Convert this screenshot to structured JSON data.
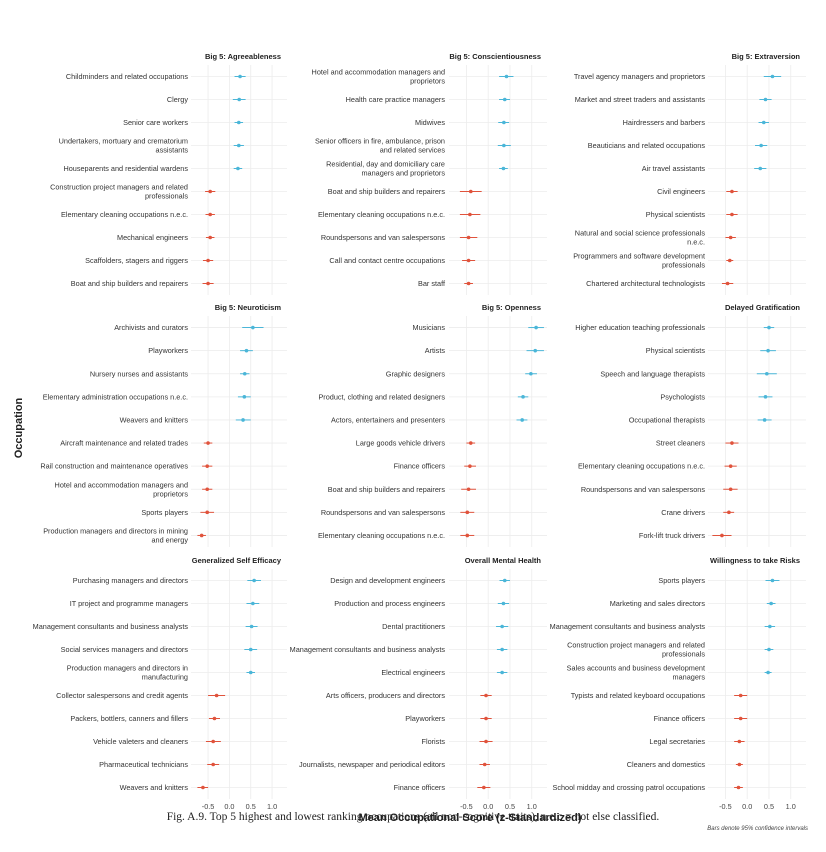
{
  "figure": {
    "y_axis_title": "Occupation",
    "x_axis_title": "Mean Occupational Score (z-Standardized)",
    "note": "Bars denote 95% confidence intervals",
    "caption_label": "Fig. A.9.",
    "caption_text": "Top 5 highest and lowest ranking occupations (all non-cognitive traits), n.e.c = not else classified.",
    "colors": {
      "high": "#4bb6d8",
      "low": "#e0533c",
      "grid": "#ececec",
      "panel_title": "#222222"
    },
    "x_ticks": [
      "-0.5",
      "0.0",
      "0.5",
      "1.0"
    ]
  },
  "chart_data": [
    {
      "type": "dot-errorbar",
      "title": "Big 5: Agreeableness",
      "xlim": [
        -0.9,
        1.35
      ],
      "points": [
        {
          "label": "Childminders and related occupations",
          "value": 0.25,
          "lo": 0.12,
          "hi": 0.38,
          "group": "high"
        },
        {
          "label": "Clergy",
          "value": 0.23,
          "lo": 0.08,
          "hi": 0.38,
          "group": "high"
        },
        {
          "label": "Senior care workers",
          "value": 0.22,
          "lo": 0.12,
          "hi": 0.32,
          "group": "high"
        },
        {
          "label": "Undertakers, mortuary and crematorium assistants",
          "value": 0.22,
          "lo": 0.1,
          "hi": 0.34,
          "group": "high"
        },
        {
          "label": "Houseparents and residential wardens",
          "value": 0.2,
          "lo": 0.1,
          "hi": 0.3,
          "group": "high"
        },
        {
          "label": "Construction project managers and related professionals",
          "value": -0.45,
          "lo": -0.57,
          "hi": -0.33,
          "group": "low"
        },
        {
          "label": "Elementary cleaning occupations n.e.c.",
          "value": -0.45,
          "lo": -0.56,
          "hi": -0.34,
          "group": "low"
        },
        {
          "label": "Mechanical engineers",
          "value": -0.45,
          "lo": -0.55,
          "hi": -0.35,
          "group": "low"
        },
        {
          "label": "Scaffolders, stagers and riggers",
          "value": -0.5,
          "lo": -0.62,
          "hi": -0.38,
          "group": "low"
        },
        {
          "label": "Boat and ship builders and repairers",
          "value": -0.5,
          "lo": -0.63,
          "hi": -0.37,
          "group": "low"
        }
      ]
    },
    {
      "type": "dot-errorbar",
      "title": "Big 5: Conscientiousness",
      "xlim": [
        -0.9,
        1.35
      ],
      "points": [
        {
          "label": "Hotel and accommodation managers and proprietors",
          "value": 0.42,
          "lo": 0.25,
          "hi": 0.58,
          "group": "high"
        },
        {
          "label": "Health care practice managers",
          "value": 0.38,
          "lo": 0.25,
          "hi": 0.5,
          "group": "high"
        },
        {
          "label": "Midwives",
          "value": 0.36,
          "lo": 0.23,
          "hi": 0.48,
          "group": "high"
        },
        {
          "label": "Senior officers in fire, ambulance, prison and related services",
          "value": 0.36,
          "lo": 0.22,
          "hi": 0.52,
          "group": "high"
        },
        {
          "label": "Residential, day and domiciliary care managers and proprietors",
          "value": 0.35,
          "lo": 0.25,
          "hi": 0.45,
          "group": "high"
        },
        {
          "label": "Boat and ship builders and repairers",
          "value": -0.4,
          "lo": -0.65,
          "hi": -0.15,
          "group": "low"
        },
        {
          "label": "Elementary cleaning occupations n.e.c.",
          "value": -0.42,
          "lo": -0.65,
          "hi": -0.18,
          "group": "low"
        },
        {
          "label": "Roundspersons and van salespersons",
          "value": -0.45,
          "lo": -0.65,
          "hi": -0.25,
          "group": "low"
        },
        {
          "label": "Call and contact centre occupations",
          "value": -0.45,
          "lo": -0.6,
          "hi": -0.3,
          "group": "low"
        },
        {
          "label": "Bar staff",
          "value": -0.45,
          "lo": -0.55,
          "hi": -0.35,
          "group": "low"
        }
      ]
    },
    {
      "type": "dot-errorbar",
      "title": "Big 5: Extraversion",
      "xlim": [
        -0.9,
        1.35
      ],
      "points": [
        {
          "label": "Travel agency managers and proprietors",
          "value": 0.58,
          "lo": 0.38,
          "hi": 0.78,
          "group": "high"
        },
        {
          "label": "Market and street traders and assistants",
          "value": 0.42,
          "lo": 0.28,
          "hi": 0.56,
          "group": "high"
        },
        {
          "label": "Hairdressers and barbers",
          "value": 0.38,
          "lo": 0.26,
          "hi": 0.5,
          "group": "high"
        },
        {
          "label": "Beauticians and related occupations",
          "value": 0.32,
          "lo": 0.18,
          "hi": 0.46,
          "group": "high"
        },
        {
          "label": "Air travel assistants",
          "value": 0.3,
          "lo": 0.16,
          "hi": 0.44,
          "group": "high"
        },
        {
          "label": "Civil engineers",
          "value": -0.35,
          "lo": -0.48,
          "hi": -0.22,
          "group": "low"
        },
        {
          "label": "Physical scientists",
          "value": -0.35,
          "lo": -0.48,
          "hi": -0.22,
          "group": "low"
        },
        {
          "label": "Natural and social science professionals n.e.c.",
          "value": -0.38,
          "lo": -0.5,
          "hi": -0.26,
          "group": "low"
        },
        {
          "label": "Programmers and software development professionals",
          "value": -0.4,
          "lo": -0.48,
          "hi": -0.32,
          "group": "low"
        },
        {
          "label": "Chartered architectural technologists",
          "value": -0.45,
          "lo": -0.58,
          "hi": -0.32,
          "group": "low"
        }
      ]
    },
    {
      "type": "dot-errorbar",
      "title": "Big 5: Neuroticism",
      "xlim": [
        -0.9,
        1.35
      ],
      "points": [
        {
          "label": "Archivists and curators",
          "value": 0.55,
          "lo": 0.3,
          "hi": 0.8,
          "group": "high"
        },
        {
          "label": "Playworkers",
          "value": 0.4,
          "lo": 0.25,
          "hi": 0.55,
          "group": "high"
        },
        {
          "label": "Nursery nurses and assistants",
          "value": 0.36,
          "lo": 0.25,
          "hi": 0.47,
          "group": "high"
        },
        {
          "label": "Elementary administration occupations n.e.c.",
          "value": 0.35,
          "lo": 0.2,
          "hi": 0.5,
          "group": "high"
        },
        {
          "label": "Weavers and knitters",
          "value": 0.32,
          "lo": 0.15,
          "hi": 0.5,
          "group": "high"
        },
        {
          "label": "Aircraft maintenance and related trades",
          "value": -0.5,
          "lo": -0.6,
          "hi": -0.4,
          "group": "low"
        },
        {
          "label": "Rail construction and maintenance operatives",
          "value": -0.52,
          "lo": -0.64,
          "hi": -0.4,
          "group": "low"
        },
        {
          "label": "Hotel and accommodation managers and proprietors",
          "value": -0.52,
          "lo": -0.64,
          "hi": -0.4,
          "group": "low"
        },
        {
          "label": "Sports players",
          "value": -0.52,
          "lo": -0.68,
          "hi": -0.36,
          "group": "low"
        },
        {
          "label": "Production managers and directors in mining and energy",
          "value": -0.65,
          "lo": -0.75,
          "hi": -0.55,
          "group": "low"
        }
      ]
    },
    {
      "type": "dot-errorbar",
      "title": "Big 5: Openness",
      "xlim": [
        -0.9,
        1.35
      ],
      "points": [
        {
          "label": "Musicians",
          "value": 1.1,
          "lo": 0.92,
          "hi": 1.28,
          "group": "high"
        },
        {
          "label": "Artists",
          "value": 1.08,
          "lo": 0.88,
          "hi": 1.28,
          "group": "high"
        },
        {
          "label": "Graphic designers",
          "value": 0.98,
          "lo": 0.85,
          "hi": 1.12,
          "group": "high"
        },
        {
          "label": "Product, clothing and related designers",
          "value": 0.8,
          "lo": 0.68,
          "hi": 0.92,
          "group": "high"
        },
        {
          "label": "Actors, entertainers and presenters",
          "value": 0.78,
          "lo": 0.65,
          "hi": 0.9,
          "group": "high"
        },
        {
          "label": "Large goods vehicle drivers",
          "value": -0.4,
          "lo": -0.5,
          "hi": -0.3,
          "group": "low"
        },
        {
          "label": "Finance officers",
          "value": -0.42,
          "lo": -0.55,
          "hi": -0.28,
          "group": "low"
        },
        {
          "label": "Boat and ship builders and repairers",
          "value": -0.45,
          "lo": -0.62,
          "hi": -0.28,
          "group": "low"
        },
        {
          "label": "Roundspersons and van salespersons",
          "value": -0.48,
          "lo": -0.64,
          "hi": -0.32,
          "group": "low"
        },
        {
          "label": "Elementary cleaning occupations n.e.c.",
          "value": -0.48,
          "lo": -0.64,
          "hi": -0.32,
          "group": "low"
        }
      ]
    },
    {
      "type": "dot-errorbar",
      "title": "Delayed Gratification",
      "xlim": [
        -0.9,
        1.35
      ],
      "points": [
        {
          "label": "Higher education teaching professionals",
          "value": 0.5,
          "lo": 0.38,
          "hi": 0.62,
          "group": "high"
        },
        {
          "label": "Physical scientists",
          "value": 0.48,
          "lo": 0.3,
          "hi": 0.66,
          "group": "high"
        },
        {
          "label": "Speech and language therapists",
          "value": 0.45,
          "lo": 0.22,
          "hi": 0.68,
          "group": "high"
        },
        {
          "label": "Psychologists",
          "value": 0.42,
          "lo": 0.26,
          "hi": 0.58,
          "group": "high"
        },
        {
          "label": "Occupational therapists",
          "value": 0.4,
          "lo": 0.24,
          "hi": 0.56,
          "group": "high"
        },
        {
          "label": "Street cleaners",
          "value": -0.35,
          "lo": -0.5,
          "hi": -0.2,
          "group": "low"
        },
        {
          "label": "Elementary cleaning occupations n.e.c.",
          "value": -0.38,
          "lo": -0.52,
          "hi": -0.24,
          "group": "low"
        },
        {
          "label": "Roundspersons and van salespersons",
          "value": -0.38,
          "lo": -0.55,
          "hi": -0.22,
          "group": "low"
        },
        {
          "label": "Crane drivers",
          "value": -0.42,
          "lo": -0.55,
          "hi": -0.3,
          "group": "low"
        },
        {
          "label": "Fork-lift truck drivers",
          "value": -0.58,
          "lo": -0.8,
          "hi": -0.36,
          "group": "low"
        }
      ]
    },
    {
      "type": "dot-errorbar",
      "title": "Generalized Self Efficacy",
      "xlim": [
        -0.9,
        1.35
      ],
      "points": [
        {
          "label": "Purchasing managers and directors",
          "value": 0.58,
          "lo": 0.42,
          "hi": 0.74,
          "group": "high"
        },
        {
          "label": "IT project and programme managers",
          "value": 0.55,
          "lo": 0.4,
          "hi": 0.7,
          "group": "high"
        },
        {
          "label": "Management consultants and business analysts",
          "value": 0.52,
          "lo": 0.38,
          "hi": 0.66,
          "group": "high"
        },
        {
          "label": "Social services managers and directors",
          "value": 0.5,
          "lo": 0.35,
          "hi": 0.65,
          "group": "high"
        },
        {
          "label": "Production managers and directors in manufacturing",
          "value": 0.5,
          "lo": 0.4,
          "hi": 0.6,
          "group": "high"
        },
        {
          "label": "Collector salespersons and credit agents",
          "value": -0.3,
          "lo": -0.5,
          "hi": -0.1,
          "group": "low"
        },
        {
          "label": "Packers, bottlers, canners and fillers",
          "value": -0.35,
          "lo": -0.48,
          "hi": -0.22,
          "group": "low"
        },
        {
          "label": "Vehicle valeters and cleaners",
          "value": -0.38,
          "lo": -0.55,
          "hi": -0.2,
          "group": "low"
        },
        {
          "label": "Pharmaceutical technicians",
          "value": -0.38,
          "lo": -0.52,
          "hi": -0.24,
          "group": "low"
        },
        {
          "label": "Weavers and knitters",
          "value": -0.62,
          "lo": -0.75,
          "hi": -0.5,
          "group": "low"
        }
      ]
    },
    {
      "type": "dot-errorbar",
      "title": "Overall Mental Health",
      "xlim": [
        -0.9,
        1.35
      ],
      "points": [
        {
          "label": "Design and development engineers",
          "value": 0.38,
          "lo": 0.26,
          "hi": 0.5,
          "group": "high"
        },
        {
          "label": "Production and process engineers",
          "value": 0.35,
          "lo": 0.22,
          "hi": 0.48,
          "group": "high"
        },
        {
          "label": "Dental practitioners",
          "value": 0.32,
          "lo": 0.18,
          "hi": 0.46,
          "group": "high"
        },
        {
          "label": "Management consultants and business analysts",
          "value": 0.32,
          "lo": 0.2,
          "hi": 0.44,
          "group": "high"
        },
        {
          "label": "Electrical engineers",
          "value": 0.32,
          "lo": 0.2,
          "hi": 0.44,
          "group": "high"
        },
        {
          "label": "Arts officers, producers and directors",
          "value": -0.05,
          "lo": -0.18,
          "hi": 0.08,
          "group": "low"
        },
        {
          "label": "Playworkers",
          "value": -0.05,
          "lo": -0.18,
          "hi": 0.08,
          "group": "low"
        },
        {
          "label": "Florists",
          "value": -0.05,
          "lo": -0.2,
          "hi": 0.1,
          "group": "low"
        },
        {
          "label": "Journalists, newspaper and periodical editors",
          "value": -0.08,
          "lo": -0.2,
          "hi": 0.04,
          "group": "low"
        },
        {
          "label": "Finance officers",
          "value": -0.1,
          "lo": -0.25,
          "hi": 0.05,
          "group": "low"
        }
      ]
    },
    {
      "type": "dot-errorbar",
      "title": "Willingness to take Risks",
      "xlim": [
        -0.9,
        1.35
      ],
      "points": [
        {
          "label": "Sports players",
          "value": 0.58,
          "lo": 0.42,
          "hi": 0.74,
          "group": "high"
        },
        {
          "label": "Marketing and sales directors",
          "value": 0.55,
          "lo": 0.45,
          "hi": 0.65,
          "group": "high"
        },
        {
          "label": "Management consultants and business analysts",
          "value": 0.52,
          "lo": 0.4,
          "hi": 0.64,
          "group": "high"
        },
        {
          "label": "Construction project managers and related professionals",
          "value": 0.5,
          "lo": 0.4,
          "hi": 0.6,
          "group": "high"
        },
        {
          "label": "Sales accounts and business development managers",
          "value": 0.48,
          "lo": 0.4,
          "hi": 0.56,
          "group": "high"
        },
        {
          "label": "Typists and related keyboard occupations",
          "value": -0.15,
          "lo": -0.3,
          "hi": 0.0,
          "group": "low"
        },
        {
          "label": "Finance officers",
          "value": -0.15,
          "lo": -0.3,
          "hi": 0.0,
          "group": "low"
        },
        {
          "label": "Legal secretaries",
          "value": -0.18,
          "lo": -0.3,
          "hi": -0.06,
          "group": "low"
        },
        {
          "label": "Cleaners and domestics",
          "value": -0.18,
          "lo": -0.26,
          "hi": -0.1,
          "group": "low"
        },
        {
          "label": "School midday and crossing patrol occupations",
          "value": -0.2,
          "lo": -0.3,
          "hi": -0.1,
          "group": "low"
        }
      ]
    }
  ]
}
